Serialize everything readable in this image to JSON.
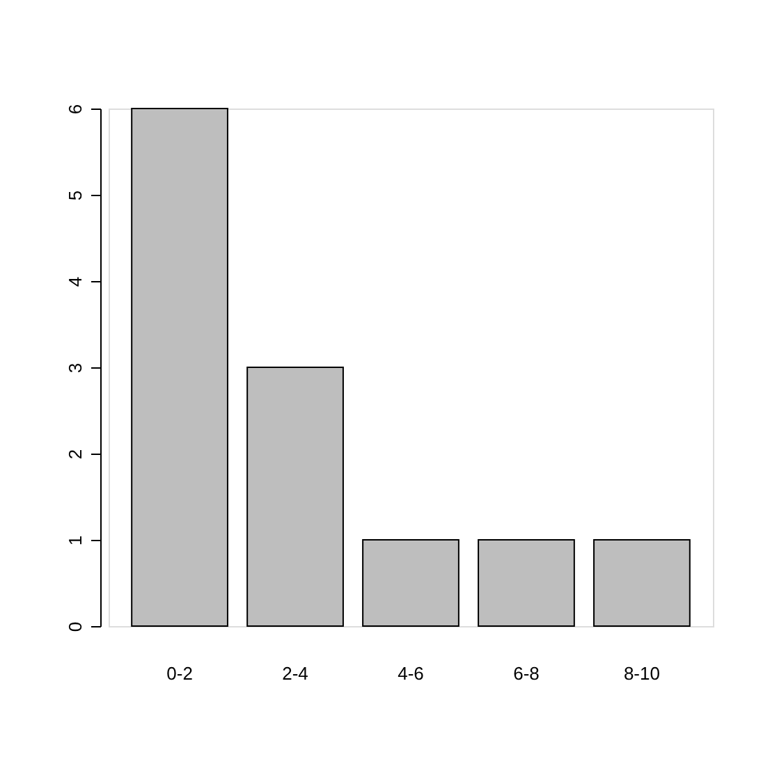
{
  "chart_data": {
    "type": "bar",
    "categories": [
      "0-2",
      "2-4",
      "4-6",
      "6-8",
      "8-10"
    ],
    "values": [
      6,
      3,
      1,
      1,
      1
    ],
    "color": "#bebebe",
    "ylim": [
      0,
      6
    ],
    "yticks": [
      0,
      1,
      2,
      3,
      4,
      5,
      6
    ],
    "grid": false
  }
}
